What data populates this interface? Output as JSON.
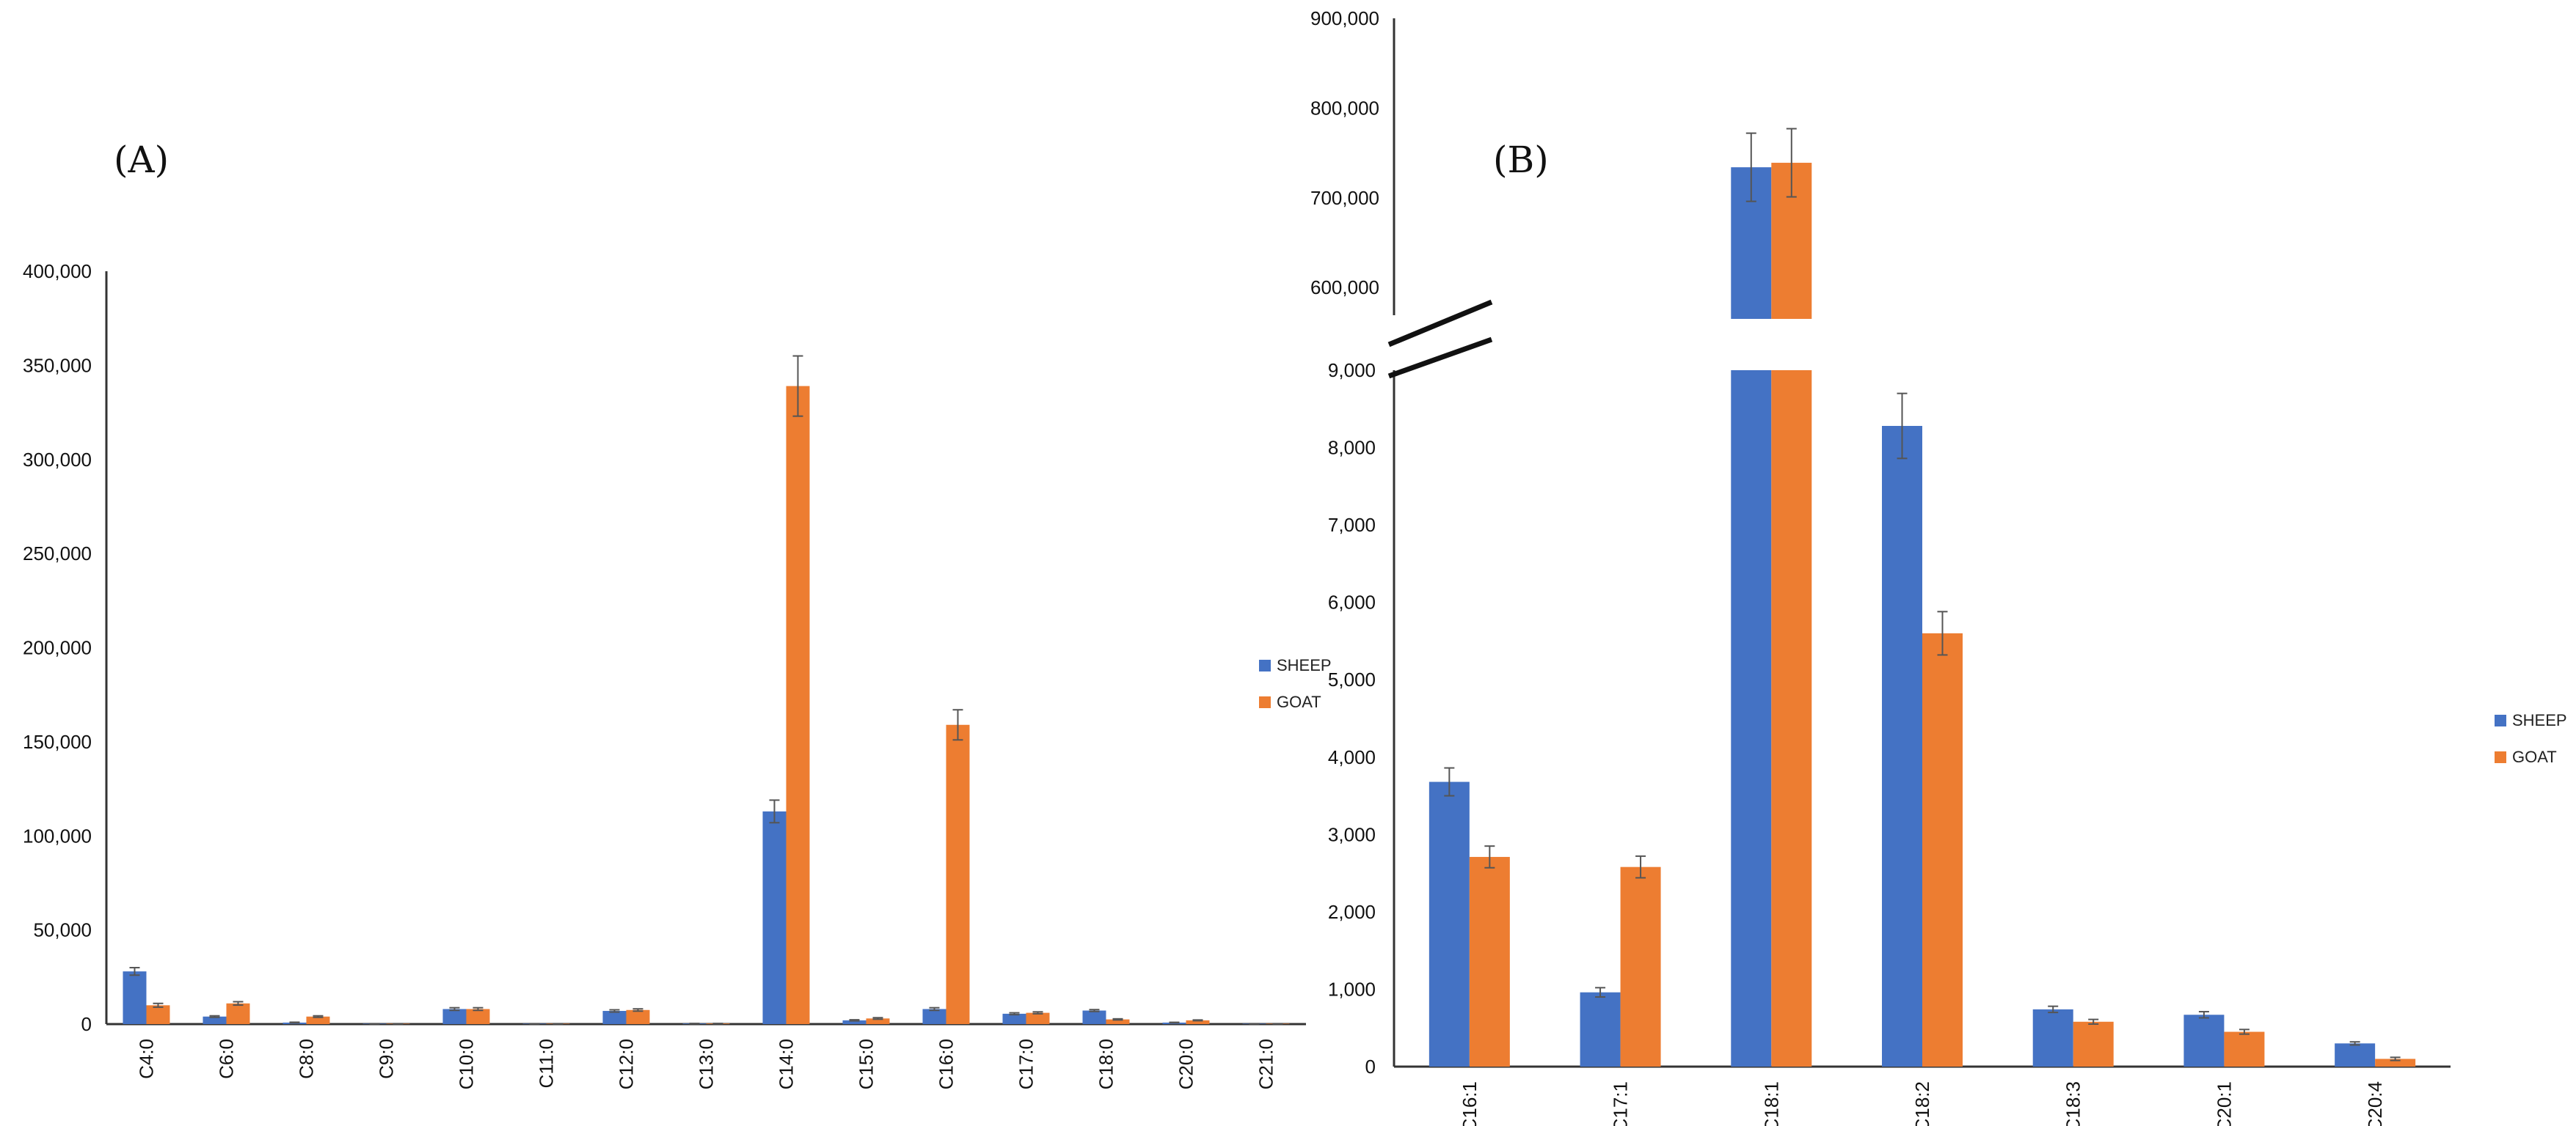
{
  "chart_data": [
    {
      "panel": "(A)",
      "type": "bar",
      "categories": [
        "C4:0",
        "C6:0",
        "C8:0",
        "C9:0",
        "C10:0",
        "C11:0",
        "C12:0",
        "C13:0",
        "C14:0",
        "C15:0",
        "C16:0",
        "C17:0",
        "C18:0",
        "C20:0",
        "C21:0"
      ],
      "series": [
        {
          "name": "SHEEP",
          "color": "#4472C4",
          "values": [
            28000,
            4000,
            800,
            200,
            8000,
            200,
            7000,
            300,
            113000,
            2000,
            8000,
            5500,
            7200,
            800,
            200
          ],
          "errors": [
            2000,
            400,
            200,
            50,
            700,
            50,
            600,
            50,
            6000,
            300,
            700,
            500,
            500,
            150,
            50
          ]
        },
        {
          "name": "GOAT",
          "color": "#ED7D31",
          "values": [
            10000,
            11000,
            4000,
            200,
            8000,
            200,
            7500,
            300,
            339000,
            3000,
            159000,
            6000,
            2500,
            2000,
            200
          ],
          "errors": [
            1000,
            900,
            400,
            50,
            700,
            50,
            600,
            50,
            16000,
            400,
            8000,
            500,
            300,
            200,
            50
          ]
        }
      ],
      "ylim": [
        0,
        400000
      ],
      "yticks": [
        "0",
        "50,000",
        "100,000",
        "150,000",
        "200,000",
        "250,000",
        "300,000",
        "350,000",
        "400,000"
      ],
      "legend": "right"
    },
    {
      "panel": "(B)",
      "type": "bar",
      "categories": [
        "C16:1",
        "C17:1",
        "C18:1",
        "C18:2",
        "C18:3",
        "C20:1",
        "C20:4"
      ],
      "series": [
        {
          "name": "SHEEP",
          "color": "#4472C4",
          "values": [
            3680,
            960,
            734000,
            8280,
            740,
            670,
            300
          ],
          "errors": [
            180,
            60,
            38000,
            420,
            40,
            40,
            20
          ]
        },
        {
          "name": "GOAT",
          "color": "#ED7D31",
          "values": [
            2710,
            2580,
            739000,
            5600,
            580,
            450,
            100
          ],
          "errors": [
            140,
            140,
            38000,
            280,
            30,
            30,
            20
          ]
        }
      ],
      "axis_break": {
        "lower_range": [
          0,
          9000
        ],
        "upper_range": [
          565000,
          900000
        ]
      },
      "yticks_lower": [
        "0",
        "1,000",
        "2,000",
        "3,000",
        "4,000",
        "5,000",
        "6,000",
        "7,000",
        "8,000",
        "9,000"
      ],
      "yticks_upper": [
        "600,000",
        "700,000",
        "800,000",
        "900,000"
      ],
      "legend": "right"
    }
  ]
}
